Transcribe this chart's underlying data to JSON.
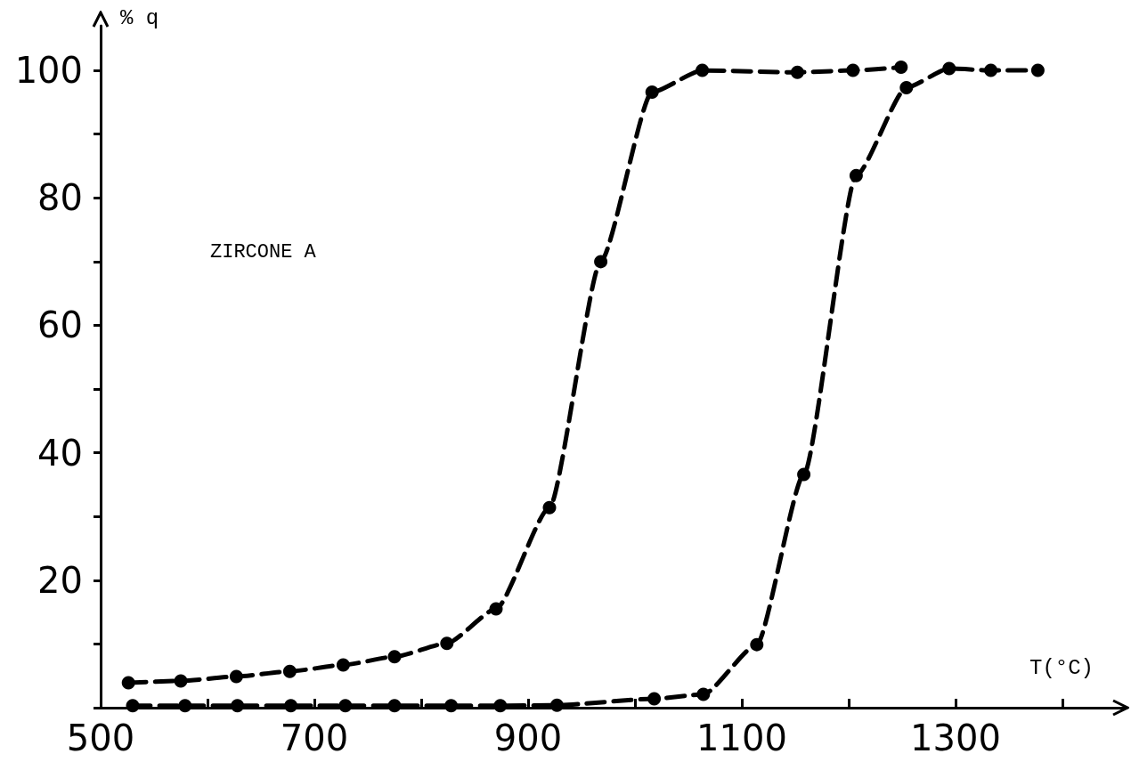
{
  "chart_data": {
    "type": "line",
    "xlabel": "T(°C)",
    "ylabel": "% q",
    "annotations": [
      "ZIRCONE A"
    ],
    "xlim": [
      500,
      1460
    ],
    "ylim": [
      0,
      107
    ],
    "xticks": [
      500,
      {
        "value": 600,
        "label": null
      },
      700,
      {
        "value": 800,
        "label": null
      },
      900,
      {
        "value": 1000,
        "label": null
      },
      1100,
      {
        "value": 1200,
        "label": null
      },
      1300,
      {
        "value": 1400,
        "label": null
      }
    ],
    "yticks": [
      {
        "value": 0,
        "label": null
      },
      {
        "value": 10,
        "label": null
      },
      20,
      {
        "value": 30,
        "label": null
      },
      40,
      {
        "value": 50,
        "label": null
      },
      60,
      {
        "value": 70,
        "label": null
      },
      80,
      {
        "value": 90,
        "label": null
      },
      100
    ],
    "grid": false,
    "marker": "circle",
    "line_style": "dashed",
    "series": [
      {
        "color": "#000000",
        "x": [
          526,
          575,
          627,
          677,
          727,
          775,
          824,
          870,
          920,
          968,
          1016,
          1063,
          1152,
          1204,
          1249
        ],
        "values": [
          3.9,
          4.2,
          4.9,
          5.7,
          6.7,
          8.0,
          10.1,
          15.5,
          31.4,
          70.0,
          96.6,
          100,
          99.7,
          100,
          100.5
        ]
      },
      {
        "color": "#000000",
        "x": [
          530,
          579,
          628,
          678,
          729,
          775,
          828,
          874,
          927,
          1018,
          1064,
          1114,
          1158,
          1207,
          1254,
          1294,
          1333,
          1377
        ],
        "values": [
          0.3,
          0.3,
          0.3,
          0.3,
          0.3,
          0.3,
          0.3,
          0.3,
          0.4,
          1.4,
          2.1,
          9.9,
          36.6,
          83.5,
          97.3,
          100.3,
          100,
          100
        ]
      }
    ]
  }
}
